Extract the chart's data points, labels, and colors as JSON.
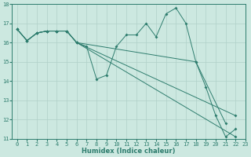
{
  "xlabel": "Humidex (Indice chaleur)",
  "xlim": [
    -0.5,
    23
  ],
  "ylim": [
    11,
    18
  ],
  "xticks": [
    0,
    1,
    2,
    3,
    4,
    5,
    6,
    7,
    8,
    9,
    10,
    11,
    12,
    13,
    14,
    15,
    16,
    17,
    18,
    19,
    20,
    21,
    22,
    23
  ],
  "yticks": [
    11,
    12,
    13,
    14,
    15,
    16,
    17,
    18
  ],
  "background_color": "#cce8e0",
  "grid_color": "#b0d0c8",
  "line_color": "#2e7d6e",
  "line1_x": [
    0,
    1,
    2,
    3,
    4,
    5,
    6,
    7,
    8,
    9,
    10,
    11,
    12,
    13,
    14,
    15,
    16,
    17,
    18,
    19,
    20,
    21,
    22
  ],
  "line1_y": [
    16.7,
    16.1,
    16.5,
    16.6,
    16.6,
    16.6,
    16.0,
    15.8,
    14.1,
    14.3,
    15.8,
    16.4,
    16.4,
    17.0,
    16.3,
    17.5,
    17.8,
    17.0,
    15.0,
    13.7,
    12.2,
    11.1,
    11.5
  ],
  "line2_x": [
    0,
    1,
    2,
    3,
    4,
    5,
    6,
    22
  ],
  "line2_y": [
    16.7,
    16.1,
    16.5,
    16.6,
    16.6,
    16.6,
    16.0,
    11.1
  ],
  "line3_x": [
    0,
    1,
    2,
    3,
    4,
    5,
    6,
    22
  ],
  "line3_y": [
    16.7,
    16.1,
    16.5,
    16.6,
    16.6,
    16.6,
    16.0,
    12.2
  ],
  "line4_x": [
    0,
    1,
    2,
    3,
    4,
    5,
    6,
    18,
    21
  ],
  "line4_y": [
    16.7,
    16.1,
    16.5,
    16.6,
    16.6,
    16.6,
    16.0,
    15.0,
    11.8
  ]
}
